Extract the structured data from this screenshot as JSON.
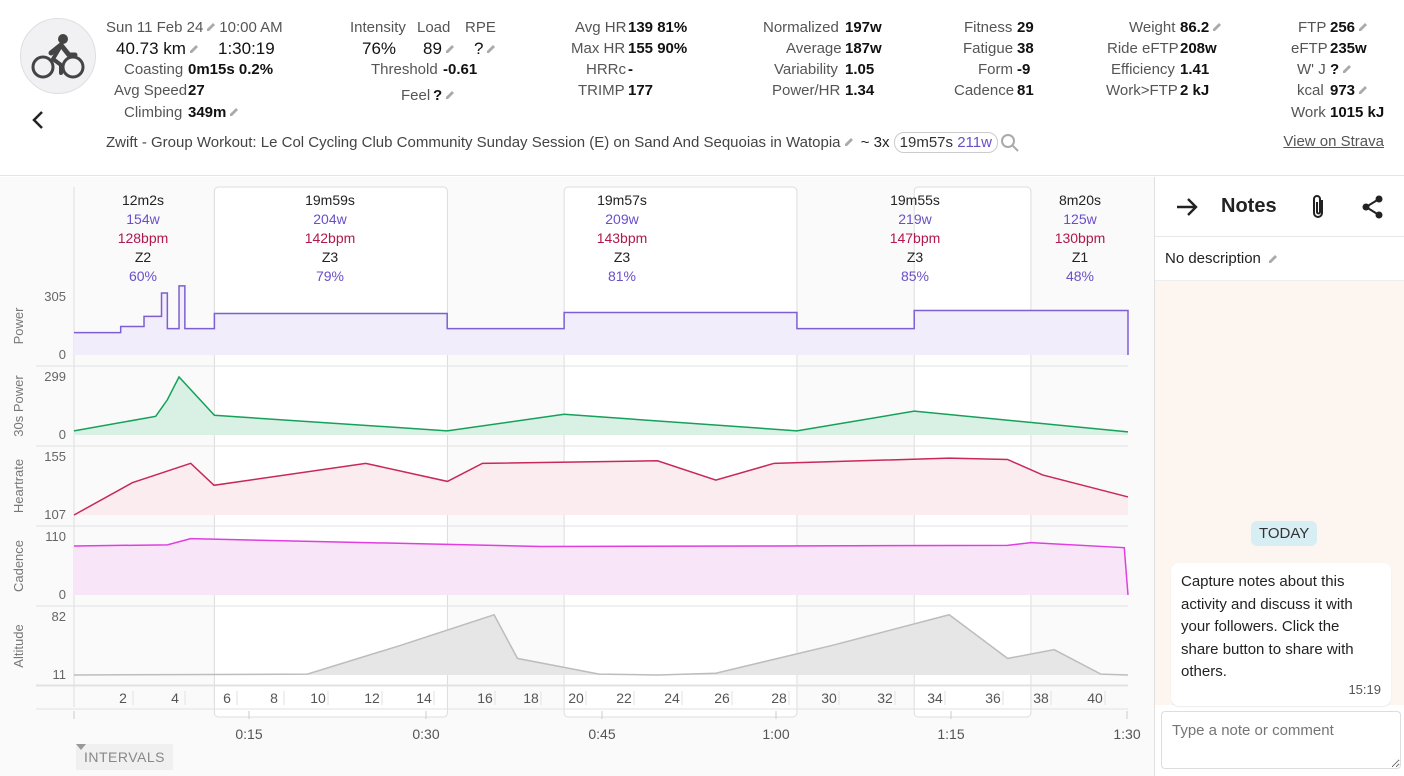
{
  "activity": {
    "date": "Sun 11 Feb 24",
    "time": "10:00 AM",
    "distance": "40.73 km",
    "duration": "1:30:19",
    "coasting_label": "Coasting",
    "coasting_value": "0m15s 0.2%",
    "avg_speed_label": "Avg Speed",
    "avg_speed_value": "27",
    "climbing_label": "Climbing",
    "climbing_value": "349m",
    "title": "Zwift - Group Workout: Le Col Cycling Club Community Sunday Session (E) on Sand And Sequoias in Watopia",
    "repeat_prefix": "~ 3x",
    "repeat_time": "19m57s",
    "repeat_watts": "211w",
    "strava_link": "View on Strava"
  },
  "stats": {
    "intensity_label": "Intensity",
    "intensity_value": "76%",
    "load_label": "Load",
    "load_value": "89",
    "rpe_label": "RPE",
    "rpe_value": "?",
    "threshold_label": "Threshold",
    "threshold_value": "-0.61",
    "feel_label": "Feel",
    "feel_value": "?",
    "avg_hr_label": "Avg HR",
    "avg_hr_value": "139  81%",
    "max_hr_label": "Max HR",
    "max_hr_value": "155  90%",
    "hrrc_label": "HRRc",
    "hrrc_value": "-",
    "trimp_label": "TRIMP",
    "trimp_value": "177",
    "normalized_label": "Normalized",
    "normalized_value": "197w",
    "average_label": "Average",
    "average_value": "187w",
    "variability_label": "Variability",
    "variability_value": "1.05",
    "power_hr_label": "Power/HR",
    "power_hr_value": "1.34",
    "fitness_label": "Fitness",
    "fitness_value": "29",
    "fatigue_label": "Fatigue",
    "fatigue_value": "38",
    "form_label": "Form",
    "form_value": "-9",
    "cadence_label": "Cadence",
    "cadence_value": "81",
    "weight_label": "Weight",
    "weight_value": "86.2",
    "ride_eftp_label": "Ride eFTP",
    "ride_eftp_value": "208w",
    "efficiency_label": "Efficiency",
    "efficiency_value": "1.41",
    "work_ftp_label": "Work>FTP",
    "work_ftp_value": "2 kJ",
    "ftp_label": "FTP",
    "ftp_value": "256",
    "eftp_label": "eFTP",
    "eftp_value": "235w",
    "wj_label": "W' J",
    "wj_value": "?",
    "kcal_label": "kcal",
    "kcal_value": "973",
    "work_label": "Work",
    "work_value": "1015 kJ"
  },
  "intervals": [
    {
      "duration": "12m2s",
      "watts": "154w",
      "bpm": "128bpm",
      "zone": "Z2",
      "pct": "60%"
    },
    {
      "duration": "19m59s",
      "watts": "204w",
      "bpm": "142bpm",
      "zone": "Z3",
      "pct": "79%"
    },
    {
      "duration": "19m57s",
      "watts": "209w",
      "bpm": "143bpm",
      "zone": "Z3",
      "pct": "81%"
    },
    {
      "duration": "19m55s",
      "watts": "219w",
      "bpm": "147bpm",
      "zone": "Z3",
      "pct": "85%"
    },
    {
      "duration": "8m20s",
      "watts": "125w",
      "bpm": "130bpm",
      "zone": "Z1",
      "pct": "48%"
    }
  ],
  "chart_data": [
    {
      "type": "area",
      "name": "Power",
      "ylim": [
        0,
        305
      ],
      "ticks": [
        "305",
        "0"
      ],
      "x": [
        0,
        4,
        6,
        7.5,
        8,
        9,
        9.5,
        10,
        12.03,
        31.98,
        42,
        61.95,
        72,
        91.87,
        90.32
      ],
      "values": [
        110,
        140,
        190,
        305,
        130,
        340,
        130,
        130,
        204,
        130,
        209,
        130,
        219,
        125,
        0
      ]
    },
    {
      "type": "area",
      "name": "30s Power",
      "ylim": [
        0,
        299
      ],
      "ticks": [
        "299",
        "0"
      ],
      "x": [
        0,
        7,
        8,
        9,
        12.03,
        31.98,
        42,
        61.95,
        72,
        91.87
      ],
      "values": [
        20,
        90,
        170,
        280,
        95,
        20,
        100,
        20,
        115,
        15
      ]
    },
    {
      "type": "area",
      "name": "Heartrate",
      "ylim": [
        107,
        155
      ],
      "ticks": [
        "155",
        "107"
      ],
      "x": [
        0,
        5,
        10,
        12,
        25,
        32,
        35,
        50,
        55,
        60,
        75,
        80,
        83,
        90.32
      ],
      "values": [
        107,
        132,
        147,
        130,
        147,
        133,
        147,
        149,
        134,
        147,
        151,
        150,
        138,
        121
      ]
    },
    {
      "type": "area",
      "name": "Cadence",
      "ylim": [
        0,
        110
      ],
      "ticks": [
        "110",
        "0"
      ],
      "x": [
        0,
        8,
        10,
        40,
        60,
        80,
        82,
        90,
        90.32
      ],
      "values": [
        87,
        89,
        100,
        86,
        87,
        88,
        93,
        84,
        0
      ]
    },
    {
      "type": "area",
      "name": "Altitude",
      "ylim": [
        11,
        82
      ],
      "ticks": [
        "82",
        "11"
      ],
      "x": [
        0,
        20,
        28,
        36,
        38,
        45,
        50,
        55,
        65,
        75,
        80,
        84,
        88,
        90.32
      ],
      "values": [
        11,
        12,
        45,
        80,
        30,
        12,
        11,
        13,
        45,
        80,
        30,
        40,
        12,
        11
      ]
    }
  ],
  "x_axis": {
    "km_ticks": [
      "2",
      "4",
      "6",
      "8",
      "10",
      "12",
      "14",
      "16",
      "18",
      "20",
      "22",
      "24",
      "26",
      "28",
      "30",
      "32",
      "34",
      "36",
      "38",
      "40"
    ],
    "time_ticks": [
      "0:15",
      "0:30",
      "0:45",
      "1:00",
      "1:15",
      "1:30"
    ]
  },
  "controls": {
    "intervals_button": "INTERVALS"
  },
  "notes": {
    "title": "Notes",
    "description": "No description",
    "today_label": "TODAY",
    "message": "Capture notes about this activity and discuss it with your followers. Click the share button to share with others.",
    "message_time": "15:19",
    "compose_placeholder": "Type a note or comment"
  },
  "colors": {
    "power": "#7e5fd1",
    "power_fill": "#f1edfa",
    "heartrate": "#c8285a",
    "heartrate_fill": "#fbecef",
    "cadence": "#e03ee0",
    "cadence_fill": "#f8e6f8",
    "altitude_fill": "#e6e6e6",
    "watts_text": "#6a4fc8",
    "bpm_text": "#b0184f"
  }
}
